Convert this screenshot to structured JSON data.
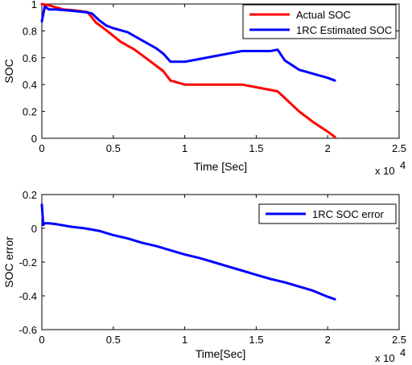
{
  "chart_data": [
    {
      "type": "line",
      "xlabel": "Time [Sec]",
      "ylabel": "SOC",
      "x_multiplier": "x 10",
      "x_exponent": "4",
      "xlim": [
        0,
        25000
      ],
      "ylim": [
        0,
        1
      ],
      "xticks": [
        0,
        5000,
        10000,
        15000,
        20000,
        25000
      ],
      "xtick_labels": [
        "0",
        "0.5",
        "1",
        "1.5",
        "2",
        "2.5"
      ],
      "yticks": [
        0,
        0.2,
        0.4,
        0.6,
        0.8,
        1
      ],
      "ytick_labels": [
        "0",
        "0.2",
        "0.4",
        "0.6",
        "0.8",
        "1"
      ],
      "legend_position": "top-right",
      "series": [
        {
          "name": "Actual SOC",
          "color": "#ff0000",
          "x": [
            0,
            500,
            1500,
            2500,
            3200,
            3500,
            3800,
            4200,
            4800,
            5500,
            6500,
            7500,
            8500,
            9000,
            10000,
            12000,
            14000,
            15000,
            16000,
            16500,
            17000,
            18000,
            19000,
            20000,
            20500
          ],
          "y": [
            1.0,
            0.99,
            0.96,
            0.95,
            0.94,
            0.9,
            0.86,
            0.83,
            0.78,
            0.72,
            0.66,
            0.58,
            0.5,
            0.43,
            0.4,
            0.4,
            0.4,
            0.38,
            0.36,
            0.35,
            0.3,
            0.2,
            0.12,
            0.05,
            0.01
          ]
        },
        {
          "name": "1RC Estimated SOC",
          "color": "#0000ff",
          "x": [
            0,
            200,
            500,
            1000,
            2000,
            3000,
            3500,
            4000,
            4500,
            5000,
            6000,
            7000,
            8000,
            8500,
            9000,
            10000,
            11000,
            12000,
            13000,
            14000,
            15000,
            16000,
            16500,
            17000,
            18000,
            19000,
            20000,
            20500
          ],
          "y": [
            0.87,
            0.98,
            0.96,
            0.96,
            0.95,
            0.94,
            0.93,
            0.88,
            0.84,
            0.82,
            0.79,
            0.73,
            0.67,
            0.63,
            0.57,
            0.57,
            0.59,
            0.61,
            0.63,
            0.65,
            0.65,
            0.65,
            0.66,
            0.58,
            0.51,
            0.48,
            0.45,
            0.43
          ]
        }
      ]
    },
    {
      "type": "line",
      "xlabel": "Time[Sec]",
      "ylabel": "SOC error",
      "x_multiplier": "x 10",
      "x_exponent": "4",
      "xlim": [
        0,
        25000
      ],
      "ylim": [
        -0.6,
        0.2
      ],
      "xticks": [
        0,
        5000,
        10000,
        15000,
        20000,
        25000
      ],
      "xtick_labels": [
        "0",
        "0.5",
        "1",
        "1.5",
        "2",
        "2.5"
      ],
      "yticks": [
        -0.6,
        -0.4,
        -0.2,
        0,
        0.2
      ],
      "ytick_labels": [
        "-0.6",
        "-0.4",
        "-0.2",
        "0",
        "0.2"
      ],
      "legend_position": "top-right",
      "series": [
        {
          "name": "1RC SOC error",
          "color": "#0000ff",
          "x": [
            0,
            100,
            200,
            500,
            1000,
            2000,
            3000,
            4000,
            5000,
            6000,
            7000,
            8000,
            9000,
            10000,
            11000,
            12000,
            13000,
            14000,
            15000,
            16000,
            17000,
            18000,
            19000,
            20000,
            20500
          ],
          "y": [
            0.14,
            0.02,
            0.03,
            0.03,
            0.025,
            0.01,
            0.0,
            -0.015,
            -0.04,
            -0.06,
            -0.085,
            -0.105,
            -0.13,
            -0.155,
            -0.175,
            -0.2,
            -0.225,
            -0.25,
            -0.275,
            -0.3,
            -0.32,
            -0.345,
            -0.37,
            -0.405,
            -0.42
          ]
        }
      ]
    }
  ]
}
